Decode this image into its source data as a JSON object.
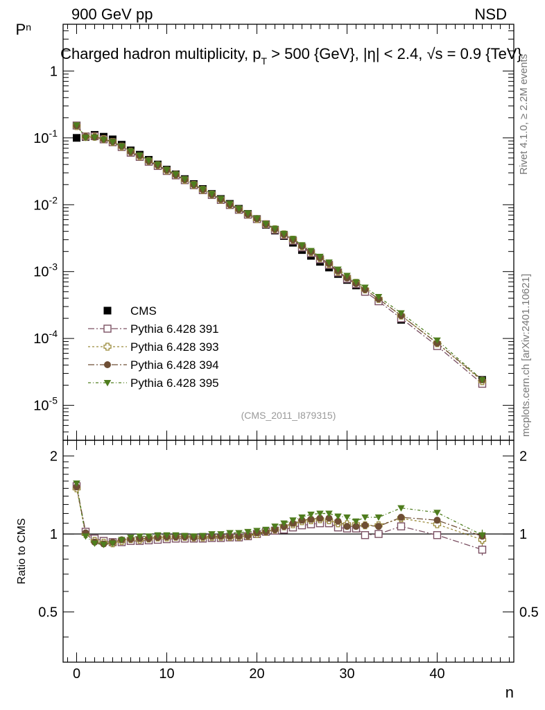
{
  "header": {
    "left": "900 GeV pp",
    "right": "NSD"
  },
  "side": {
    "rivet": "Rivet 4.1.0, ≥ 2.2M events",
    "mcplots": "mcplots.cern.ch [arXiv:2401.10621]"
  },
  "chart_data": {
    "type": "scatter",
    "title": "Charged hadron multiplicity, p_T > 500 {GeV}, |η| < 2.4, √s = 0.9 {TeV}",
    "analysis_id": "(CMS_2011_I879315)",
    "xlabel": "n",
    "ylabel": "P_n",
    "ratio_ylabel": "Ratio to CMS",
    "x_ticks": [
      "0",
      "10",
      "20",
      "30",
      "40"
    ],
    "y_ticks": [
      "1",
      "10^-1",
      "10^-2",
      "10^-3",
      "10^-4",
      "10^-5"
    ],
    "ratio_ticks": [
      "2",
      "1",
      "0.5"
    ],
    "xlim": [
      -1.5,
      48.5
    ],
    "ylim": [
      3e-06,
      5.0
    ],
    "ratio_ylim": [
      0.32,
      2.3
    ],
    "x": [
      0,
      1,
      2,
      3,
      4,
      5,
      6,
      7,
      8,
      9,
      10,
      11,
      12,
      13,
      14,
      15,
      16,
      17,
      18,
      19,
      20,
      21,
      22,
      23,
      24,
      25,
      26,
      27,
      28,
      29,
      30,
      31,
      32,
      33.5,
      36,
      40,
      45
    ],
    "series": [
      {
        "name": "CMS",
        "legend": "CMS",
        "color": "#000000",
        "marker": "filled-square",
        "values": [
          0.1,
          0.103,
          0.111,
          0.104,
          0.095,
          0.079,
          0.065,
          0.056,
          0.047,
          0.04,
          0.0335,
          0.0285,
          0.0242,
          0.0204,
          0.0172,
          0.0145,
          0.0122,
          0.0103,
          0.0087,
          0.0073,
          0.0061,
          0.005,
          0.0041,
          0.0034,
          0.0027,
          0.0021,
          0.00172,
          0.0014,
          0.00115,
          0.00092,
          0.00075,
          0.00062,
          0.0005,
          0.00036,
          0.00019,
          7.8e-05,
          2.4e-05
        ]
      },
      {
        "name": "Pythia 6.428 391",
        "legend": "Pythia 6.428 391",
        "color": "#7a4f62",
        "marker": "open-square",
        "dash": "9,3,2,3",
        "values": [
          0.153,
          0.105,
          0.106,
          0.095,
          0.086,
          0.073,
          0.06,
          0.052,
          0.044,
          0.038,
          0.032,
          0.0275,
          0.0233,
          0.0196,
          0.0165,
          0.014,
          0.0118,
          0.0099,
          0.0084,
          0.0071,
          0.0061,
          0.0051,
          0.0042,
          0.0035,
          0.0029,
          0.0023,
          0.00189,
          0.00153,
          0.00126,
          0.00097,
          0.00078,
          0.00065,
          0.0005,
          0.00036,
          0.0002,
          7.7e-05,
          2.1e-05
        ]
      },
      {
        "name": "Pythia 6.428 393",
        "legend": "Pythia 6.428 393",
        "color": "#9a8a3a",
        "marker": "open-cross",
        "dash": "3,3",
        "values": [
          0.15,
          0.104,
          0.104,
          0.096,
          0.087,
          0.074,
          0.062,
          0.053,
          0.045,
          0.039,
          0.0325,
          0.028,
          0.0235,
          0.0198,
          0.0167,
          0.0142,
          0.0119,
          0.01,
          0.0085,
          0.0072,
          0.0061,
          0.0051,
          0.0043,
          0.0036,
          0.003,
          0.0024,
          0.00195,
          0.00159,
          0.0013,
          0.001,
          0.00082,
          0.00068,
          0.00054,
          0.00039,
          0.00022,
          8.5e-05,
          2.3e-05
        ]
      },
      {
        "name": "Pythia 6.428 394",
        "legend": "Pythia 6.428 394",
        "color": "#6e4e34",
        "marker": "filled-circle",
        "dash": "9,3,2,3",
        "values": [
          0.152,
          0.105,
          0.103,
          0.095,
          0.088,
          0.075,
          0.062,
          0.054,
          0.045,
          0.039,
          0.033,
          0.028,
          0.0237,
          0.0199,
          0.0168,
          0.0142,
          0.012,
          0.01,
          0.0085,
          0.0072,
          0.0062,
          0.0051,
          0.0043,
          0.0036,
          0.003,
          0.0024,
          0.00198,
          0.00161,
          0.00132,
          0.00102,
          0.0008,
          0.00066,
          0.00054,
          0.00039,
          0.00022,
          8.5e-05,
          2.4e-05
        ]
      },
      {
        "name": "Pythia 6.428 395",
        "legend": "Pythia 6.428 395",
        "color": "#4f7d1e",
        "marker": "filled-triangle-down",
        "dash": "4,3,1,3",
        "values": [
          0.155,
          0.101,
          0.102,
          0.094,
          0.087,
          0.075,
          0.063,
          0.055,
          0.046,
          0.04,
          0.0335,
          0.0286,
          0.0242,
          0.0202,
          0.0171,
          0.0146,
          0.0123,
          0.0104,
          0.0088,
          0.0075,
          0.0063,
          0.0052,
          0.0044,
          0.0037,
          0.0031,
          0.0025,
          0.00205,
          0.00168,
          0.00138,
          0.00108,
          0.00087,
          0.0007,
          0.00058,
          0.00042,
          0.00024,
          9.4e-05,
          2.4e-05
        ]
      }
    ],
    "ratios": [
      {
        "name": "Pythia 6.428 391",
        "values": [
          1.53,
          1.02,
          0.96,
          0.94,
          0.93,
          0.93,
          0.94,
          0.94,
          0.945,
          0.95,
          0.955,
          0.96,
          0.96,
          0.96,
          0.96,
          0.965,
          0.965,
          0.97,
          0.97,
          0.98,
          1.0,
          1.02,
          1.03,
          1.04,
          1.06,
          1.08,
          1.09,
          1.1,
          1.1,
          1.06,
          1.05,
          1.05,
          0.99,
          1.0,
          1.07,
          0.99,
          0.87
        ]
      },
      {
        "name": "Pythia 6.428 393",
        "values": [
          1.5,
          1.0,
          0.94,
          0.925,
          0.92,
          0.94,
          0.955,
          0.95,
          0.96,
          0.97,
          0.97,
          0.975,
          0.975,
          0.97,
          0.97,
          0.975,
          0.975,
          0.975,
          0.975,
          0.985,
          1.0,
          1.02,
          1.04,
          1.07,
          1.09,
          1.12,
          1.13,
          1.14,
          1.13,
          1.1,
          1.09,
          1.09,
          1.08,
          1.08,
          1.15,
          1.09,
          0.95
        ]
      },
      {
        "name": "Pythia 6.428 394",
        "values": [
          1.52,
          1.01,
          0.93,
          0.915,
          0.93,
          0.95,
          0.955,
          0.96,
          0.96,
          0.97,
          0.975,
          0.975,
          0.975,
          0.97,
          0.975,
          0.98,
          0.98,
          0.98,
          0.98,
          0.985,
          1.01,
          1.02,
          1.04,
          1.07,
          1.1,
          1.13,
          1.14,
          1.15,
          1.15,
          1.12,
          1.07,
          1.07,
          1.08,
          1.07,
          1.16,
          1.13,
          0.98
        ]
      },
      {
        "name": "Pythia 6.428 395",
        "values": [
          1.57,
          0.98,
          0.92,
          0.91,
          0.92,
          0.95,
          0.97,
          0.98,
          0.98,
          0.99,
          0.99,
          0.99,
          0.985,
          0.98,
          0.985,
          1.0,
          1.0,
          1.01,
          1.01,
          1.02,
          1.03,
          1.04,
          1.07,
          1.1,
          1.13,
          1.16,
          1.19,
          1.2,
          1.2,
          1.17,
          1.16,
          1.12,
          1.16,
          1.16,
          1.26,
          1.21,
          0.99
        ]
      }
    ]
  }
}
